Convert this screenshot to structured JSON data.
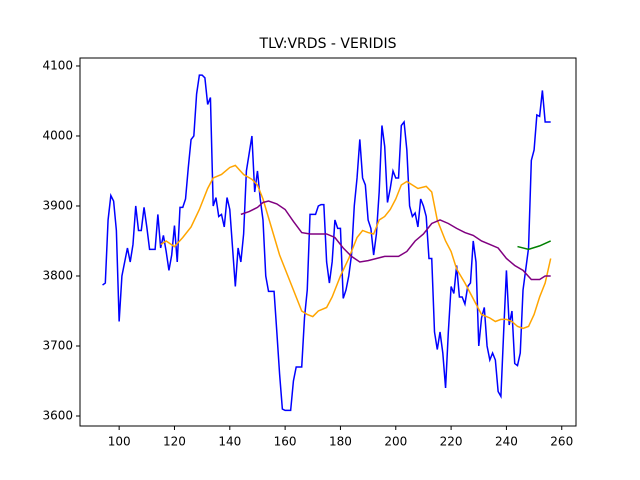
{
  "chart_data": {
    "type": "line",
    "title": "TLV:VRDS - VERIDIS",
    "xlim": [
      85.85,
      265.15
    ],
    "ylim": [
      3585.7,
      4111.4
    ],
    "xticks": [
      100,
      120,
      140,
      160,
      180,
      200,
      220,
      240,
      260
    ],
    "yticks": [
      3600,
      3700,
      3800,
      3900,
      4000,
      4100
    ],
    "grid": false,
    "series": [
      {
        "color": "#0000ff",
        "x": [
          94,
          95,
          96,
          97,
          98,
          99,
          100,
          101,
          103,
          104,
          105,
          106,
          107,
          108,
          109,
          110,
          111,
          113,
          114,
          115,
          116,
          117,
          118,
          119,
          120,
          121,
          122,
          123,
          124,
          125,
          126,
          127,
          128,
          129,
          130,
          131,
          132,
          133,
          134,
          135,
          136,
          137,
          138,
          139,
          140,
          141,
          142,
          143,
          144,
          145,
          146,
          147,
          148,
          149,
          150,
          151,
          152,
          153,
          154,
          155,
          156,
          157,
          158,
          159,
          160,
          161,
          162,
          163,
          164,
          165,
          166,
          167,
          168,
          169,
          170,
          171,
          172,
          173,
          174,
          175,
          176,
          177,
          178,
          179,
          180,
          181,
          182,
          183,
          184,
          185,
          186,
          187,
          188,
          189,
          190,
          191,
          192,
          193,
          194,
          195,
          196,
          197,
          198,
          199,
          200,
          201,
          202,
          203,
          204,
          205,
          206,
          207,
          208,
          209,
          210,
          211,
          212,
          213,
          214,
          215,
          216,
          217,
          218,
          219,
          220,
          221,
          222,
          223,
          224,
          225,
          226,
          227,
          228,
          229,
          230,
          231,
          232,
          233,
          234,
          235,
          236,
          237,
          238,
          239,
          240,
          241,
          242,
          243,
          244,
          245,
          246,
          247,
          248,
          249,
          250,
          251,
          252,
          253,
          254,
          255,
          256
        ],
        "values": [
          3787,
          3790,
          3880,
          3915,
          3907,
          3865,
          3735,
          3800,
          3840,
          3820,
          3845,
          3900,
          3865,
          3865,
          3898,
          3870,
          3838,
          3838,
          3888,
          3840,
          3858,
          3835,
          3808,
          3830,
          3872,
          3820,
          3898,
          3898,
          3910,
          3955,
          3995,
          4000,
          4060,
          4087,
          4087,
          4083,
          4045,
          4055,
          3900,
          3912,
          3885,
          3888,
          3870,
          3912,
          3895,
          3840,
          3785,
          3840,
          3820,
          3860,
          3950,
          3975,
          4000,
          3920,
          3950,
          3910,
          3880,
          3800,
          3778,
          3778,
          3778,
          3720,
          3660,
          3610,
          3608,
          3608,
          3608,
          3650,
          3670,
          3670,
          3670,
          3740,
          3780,
          3888,
          3888,
          3888,
          3900,
          3902,
          3902,
          3820,
          3790,
          3820,
          3880,
          3868,
          3868,
          3768,
          3780,
          3800,
          3830,
          3900,
          3940,
          3995,
          3940,
          3930,
          3880,
          3868,
          3830,
          3860,
          3920,
          4015,
          3985,
          3905,
          3925,
          3950,
          3940,
          3940,
          4015,
          4020,
          3980,
          3900,
          3885,
          3890,
          3870,
          3910,
          3900,
          3885,
          3825,
          3825,
          3720,
          3695,
          3720,
          3690,
          3640,
          3720,
          3785,
          3775,
          3815,
          3770,
          3770,
          3760,
          3785,
          3790,
          3850,
          3820,
          3700,
          3740,
          3755,
          3700,
          3680,
          3690,
          3680,
          3635,
          3628,
          3720,
          3808,
          3730,
          3750,
          3675,
          3672,
          3690,
          3780,
          3810,
          3840,
          3965,
          3980,
          4030,
          4028,
          4065,
          4020,
          4020,
          4020
        ]
      },
      {
        "color": "#ffa500",
        "x": [
          115,
          117,
          120,
          123,
          126,
          129,
          132,
          134,
          137,
          140,
          142,
          145,
          148,
          150,
          152,
          155,
          158,
          161,
          164,
          166,
          168,
          170,
          172,
          175,
          177,
          180,
          183,
          186,
          188,
          190,
          192,
          194,
          196,
          198,
          200,
          202,
          204,
          206,
          208,
          211,
          213,
          215,
          218,
          220,
          222,
          225,
          227,
          229,
          231,
          234,
          236,
          238,
          240,
          242,
          244,
          246,
          248,
          250,
          252,
          254,
          256
        ],
        "values": [
          3845,
          3850,
          3842,
          3855,
          3870,
          3895,
          3925,
          3940,
          3945,
          3955,
          3958,
          3945,
          3938,
          3930,
          3910,
          3870,
          3830,
          3800,
          3770,
          3750,
          3745,
          3742,
          3750,
          3755,
          3770,
          3800,
          3825,
          3855,
          3865,
          3862,
          3860,
          3880,
          3885,
          3895,
          3910,
          3930,
          3935,
          3930,
          3925,
          3928,
          3920,
          3880,
          3850,
          3835,
          3810,
          3790,
          3775,
          3760,
          3745,
          3740,
          3735,
          3738,
          3738,
          3735,
          3728,
          3725,
          3728,
          3745,
          3770,
          3790,
          3825
        ]
      },
      {
        "color": "#800080",
        "x": [
          144,
          147,
          150,
          152,
          154,
          157,
          160,
          163,
          166,
          169,
          172,
          175,
          178,
          181,
          184,
          187,
          190,
          193,
          196,
          198,
          201,
          204,
          207,
          210,
          213,
          216,
          219,
          222,
          225,
          228,
          231,
          234,
          237,
          240,
          243,
          246,
          249,
          252,
          254,
          256
        ],
        "values": [
          3888,
          3892,
          3898,
          3905,
          3907,
          3903,
          3895,
          3878,
          3862,
          3860,
          3860,
          3860,
          3855,
          3840,
          3828,
          3820,
          3822,
          3825,
          3828,
          3828,
          3828,
          3835,
          3850,
          3860,
          3875,
          3880,
          3875,
          3868,
          3862,
          3858,
          3850,
          3845,
          3840,
          3825,
          3815,
          3808,
          3795,
          3795,
          3800,
          3800
        ]
      },
      {
        "color": "#008000",
        "x": [
          244,
          248,
          252,
          256
        ],
        "values": [
          3842,
          3838,
          3843,
          3850
        ]
      }
    ]
  }
}
